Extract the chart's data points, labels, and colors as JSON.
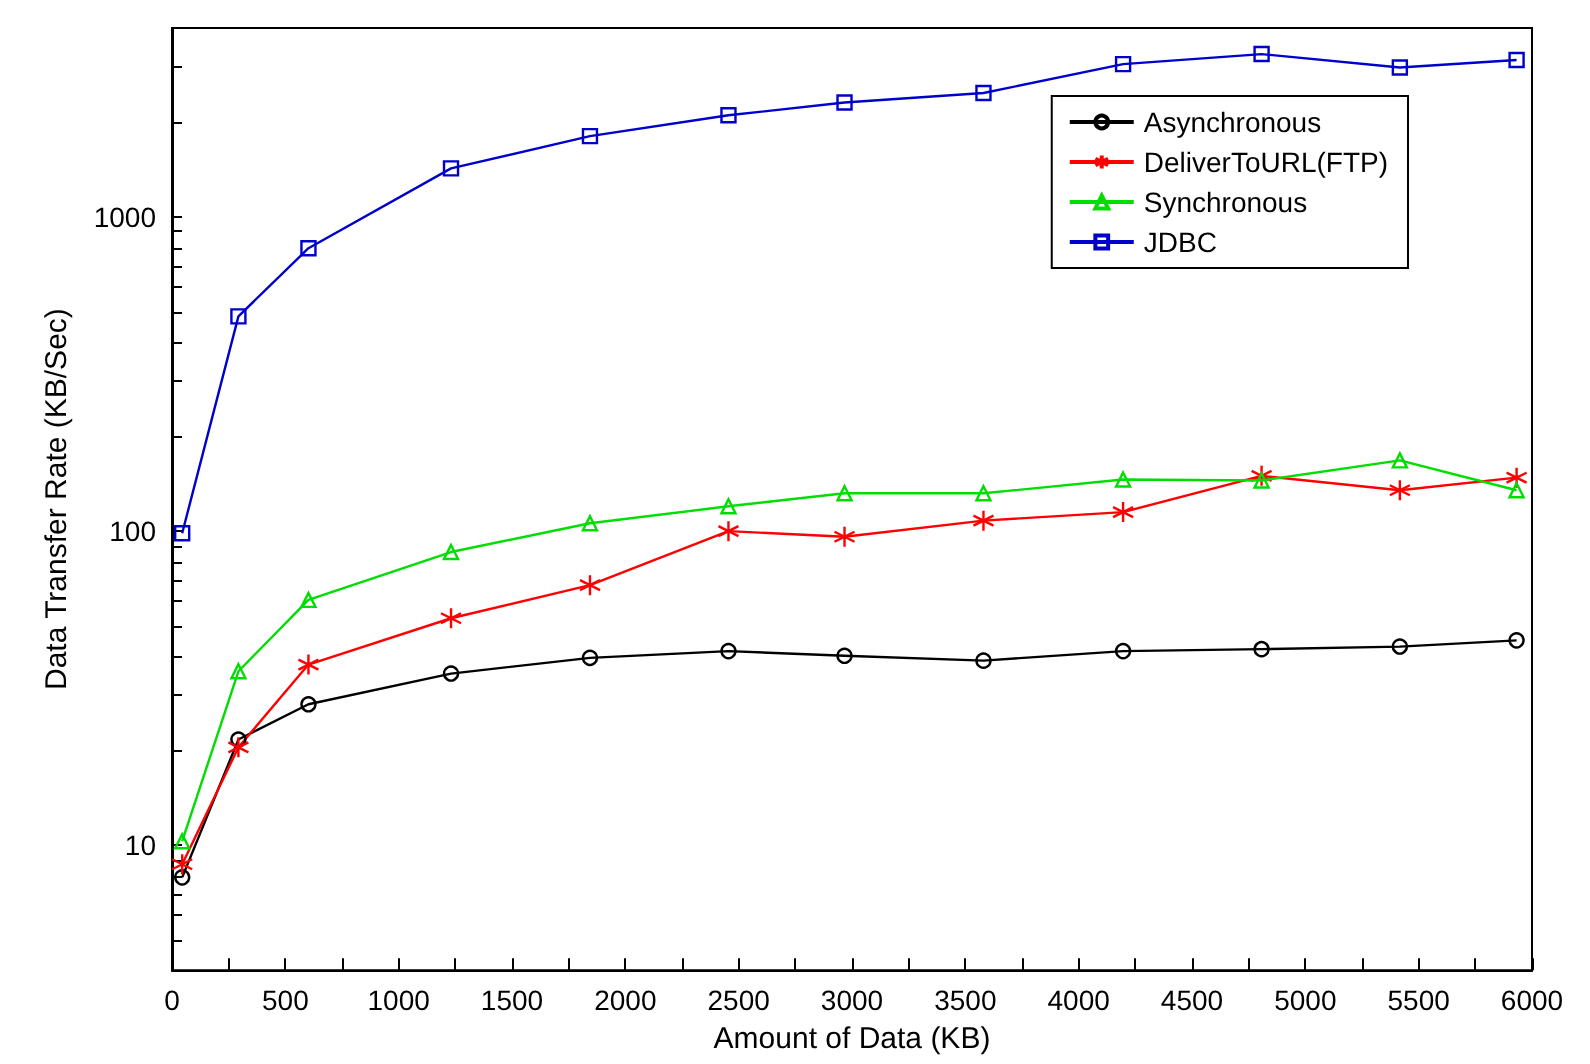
{
  "chart_data": {
    "type": "line",
    "xlabel": "Amount of Data (KB)",
    "ylabel": "Data Transfer Rate (KB/Sec)",
    "x": [
      45,
      293,
      602,
      1231,
      1844,
      2455,
      2967,
      3580,
      4196,
      4807,
      5417,
      5932
    ],
    "series": [
      {
        "name": "Asynchronous",
        "color": "#000000",
        "marker": "circle",
        "values": [
          7.9,
          21.7,
          28.1,
          35.2,
          39.5,
          41.5,
          40.1,
          38.7,
          41.5,
          42.1,
          42.9,
          44.9
        ]
      },
      {
        "name": "DeliverToURL(FTP)",
        "color": "#ff0000",
        "marker": "cross",
        "values": [
          8.7,
          20.5,
          37.6,
          52.8,
          67.3,
          100,
          96,
          108,
          115,
          150,
          135,
          148
        ]
      },
      {
        "name": "Synchronous",
        "color": "#00dd00",
        "marker": "triangle",
        "values": [
          10.3,
          35.8,
          60.4,
          85.8,
          106,
          120,
          132,
          132,
          146,
          145,
          168,
          135
        ]
      },
      {
        "name": "JDBC",
        "color": "#0000cc",
        "marker": "square",
        "values": [
          98.5,
          483,
          796,
          1429,
          1811,
          2109,
          2317,
          2483,
          3070,
          3304,
          2995,
          3162
        ]
      }
    ],
    "log": "y",
    "xlim": [
      0,
      6000
    ],
    "ylim": [
      4,
      4000
    ],
    "xticks": [
      0,
      {
        "value": 250,
        "label": null
      },
      500,
      {
        "value": 750,
        "label": null
      },
      1000,
      {
        "value": 1250,
        "label": null
      },
      1500,
      {
        "value": 1750,
        "label": null
      },
      2000,
      {
        "value": 2250,
        "label": null
      },
      2500,
      {
        "value": 2750,
        "label": null
      },
      3000,
      {
        "value": 3250,
        "label": null
      },
      3500,
      {
        "value": 3750,
        "label": null
      },
      4000,
      {
        "value": 4250,
        "label": null
      },
      4500,
      {
        "value": 4750,
        "label": null
      },
      5000,
      {
        "value": 5250,
        "label": null
      },
      5500,
      {
        "value": 5750,
        "label": null
      },
      6000
    ],
    "yticks": [
      {
        "value": 5,
        "label": null
      },
      {
        "value": 6,
        "label": null
      },
      {
        "value": 7,
        "label": null
      },
      {
        "value": 8,
        "label": null
      },
      {
        "value": 9,
        "label": null
      },
      10,
      {
        "value": 20,
        "label": null
      },
      {
        "value": 30,
        "label": null
      },
      {
        "value": 40,
        "label": null
      },
      {
        "value": 50,
        "label": null
      },
      {
        "value": 60,
        "label": null
      },
      {
        "value": 70,
        "label": null
      },
      {
        "value": 80,
        "label": null
      },
      {
        "value": 90,
        "label": null
      },
      100,
      {
        "value": 200,
        "label": null
      },
      {
        "value": 300,
        "label": null
      },
      {
        "value": 400,
        "label": null
      },
      {
        "value": 500,
        "label": null
      },
      {
        "value": 600,
        "label": null
      },
      {
        "value": 700,
        "label": null
      },
      {
        "value": 800,
        "label": null
      },
      {
        "value": 900,
        "label": null
      },
      1000,
      {
        "value": 2000,
        "label": null
      },
      {
        "value": 3000,
        "label": null
      }
    ],
    "grid": false,
    "legend": "top right",
    "line_style": "solid"
  }
}
